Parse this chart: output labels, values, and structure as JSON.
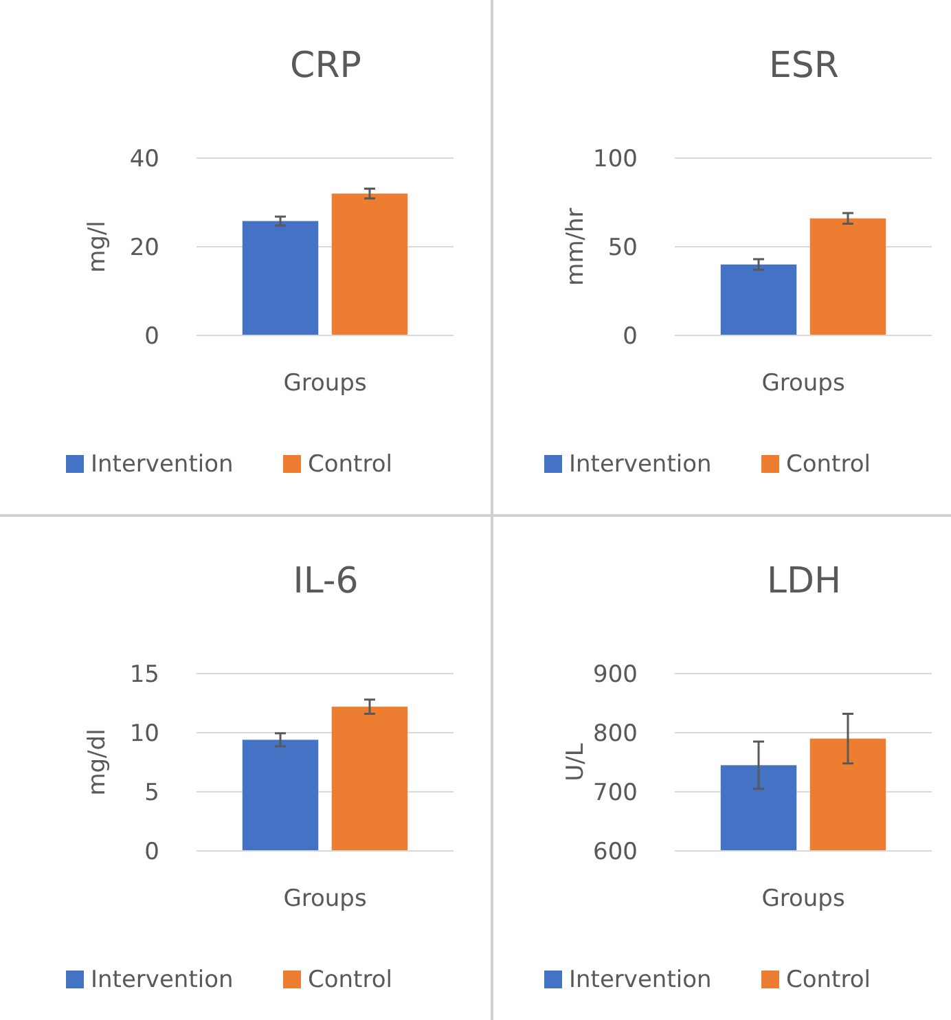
{
  "chart_data": [
    {
      "type": "bar",
      "title": "CRP",
      "ylabel": "mg/l",
      "categories": [
        "Groups"
      ],
      "ylim": [
        0,
        40
      ],
      "yticks": [
        0,
        20,
        40
      ],
      "grid": "y",
      "legend": "bottom",
      "series": [
        {
          "name": "Intervention",
          "color": "#4472c4",
          "values": [
            25.8
          ],
          "errors": [
            1.0
          ]
        },
        {
          "name": "Control",
          "color": "#ed7d31",
          "values": [
            32
          ],
          "errors": [
            1.1
          ]
        }
      ]
    },
    {
      "type": "bar",
      "title": "ESR",
      "ylabel": "mm/hr",
      "categories": [
        "Groups"
      ],
      "ylim": [
        0,
        100
      ],
      "yticks": [
        0,
        50,
        100
      ],
      "grid": "y",
      "legend": "bottom",
      "series": [
        {
          "name": "Intervention",
          "color": "#4472c4",
          "values": [
            40
          ],
          "errors": [
            3
          ]
        },
        {
          "name": "Control",
          "color": "#ed7d31",
          "values": [
            66
          ],
          "errors": [
            3
          ]
        }
      ]
    },
    {
      "type": "bar",
      "title": "IL-6",
      "ylabel": "mg/dl",
      "categories": [
        "Groups"
      ],
      "ylim": [
        0,
        15
      ],
      "yticks": [
        0,
        5,
        10,
        15
      ],
      "grid": "y",
      "legend": "bottom",
      "series": [
        {
          "name": "Intervention",
          "color": "#4472c4",
          "values": [
            9.4
          ],
          "errors": [
            0.55
          ]
        },
        {
          "name": "Control",
          "color": "#ed7d31",
          "values": [
            12.2
          ],
          "errors": [
            0.6
          ]
        }
      ]
    },
    {
      "type": "bar",
      "title": "LDH",
      "ylabel": "U/L",
      "categories": [
        "Groups"
      ],
      "ylim": [
        600,
        900
      ],
      "yticks": [
        600,
        700,
        800,
        900
      ],
      "grid": "y",
      "legend": "bottom",
      "series": [
        {
          "name": "Intervention",
          "color": "#4472c4",
          "values": [
            745
          ],
          "errors": [
            40
          ]
        },
        {
          "name": "Control",
          "color": "#ed7d31",
          "values": [
            790
          ],
          "errors": [
            42
          ]
        }
      ]
    }
  ]
}
